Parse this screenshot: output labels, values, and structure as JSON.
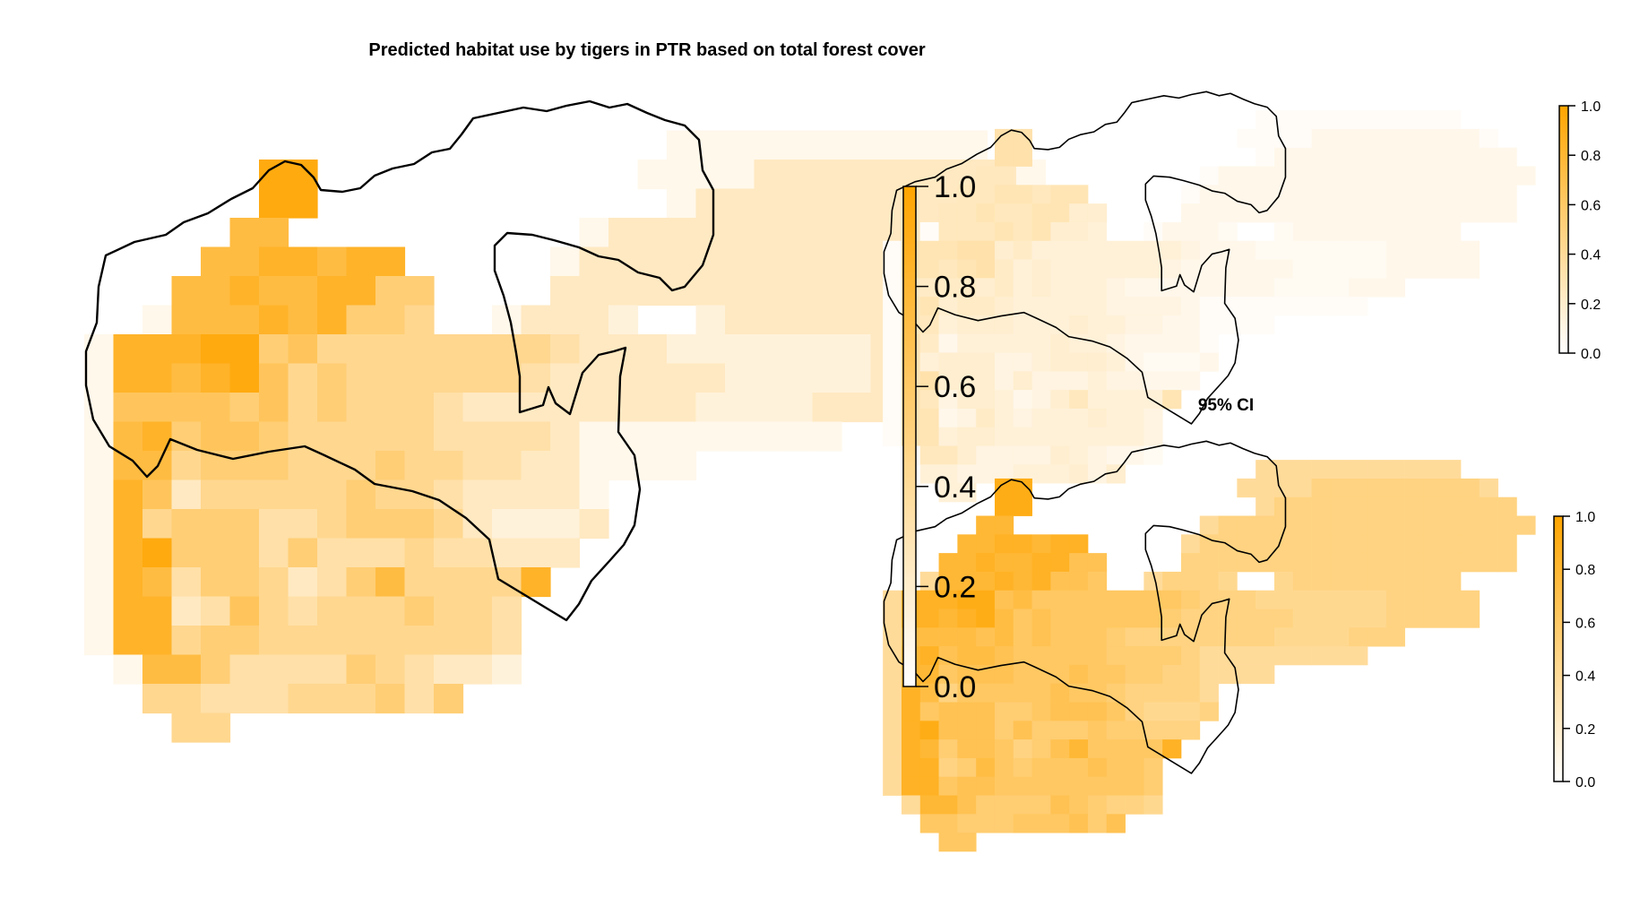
{
  "title": "Predicted habitat use by tigers in PTR based on total forest cover",
  "ci_label": "95% CI",
  "colors": {
    "low": "#ffffff",
    "high": "#ffa500",
    "outline": "#000000"
  },
  "scale": {
    "min": 0.0,
    "max": 1.0,
    "ticks": [
      "0.0",
      "0.2",
      "0.4",
      "0.6",
      "0.8",
      "1.0"
    ]
  },
  "chart_data": [
    {
      "type": "heatmap",
      "panel": "main",
      "rows": [
        "..........................................",
        "....................xxxxxxxxxxx...",
        "......99...........xxxx222222222x",
        "......99............x2222222222222",
        ".....77..........x22222222222222222",
        "....7788788.....x22222222222222222",
        "...778778855....222222222222222222",
        "..x777878554..x2221..1222222222",
        "x8889956444444443222111111122222",
        "x8878964544444432222221111122222",
        "x666656454443222222221111222",
        "x7856654444433332xxxxxxxxx",
        "x7745554445443322xxxx",
        "x8624444454432222x",
        "x84555334555421112",
        "x8955535333433222",
        "x873554235744448",
        "x88236434445443",
        "x88455444444443",
        ".x7753333543221",
        "..44333444535",
        "...44..........."
      ]
    },
    {
      "type": "heatmap",
      "panel": "upper-ci",
      "level_range": [
        0.0,
        0.35
      ]
    },
    {
      "type": "heatmap",
      "panel": "lower-ci",
      "level_range": [
        0.35,
        0.95
      ]
    }
  ]
}
